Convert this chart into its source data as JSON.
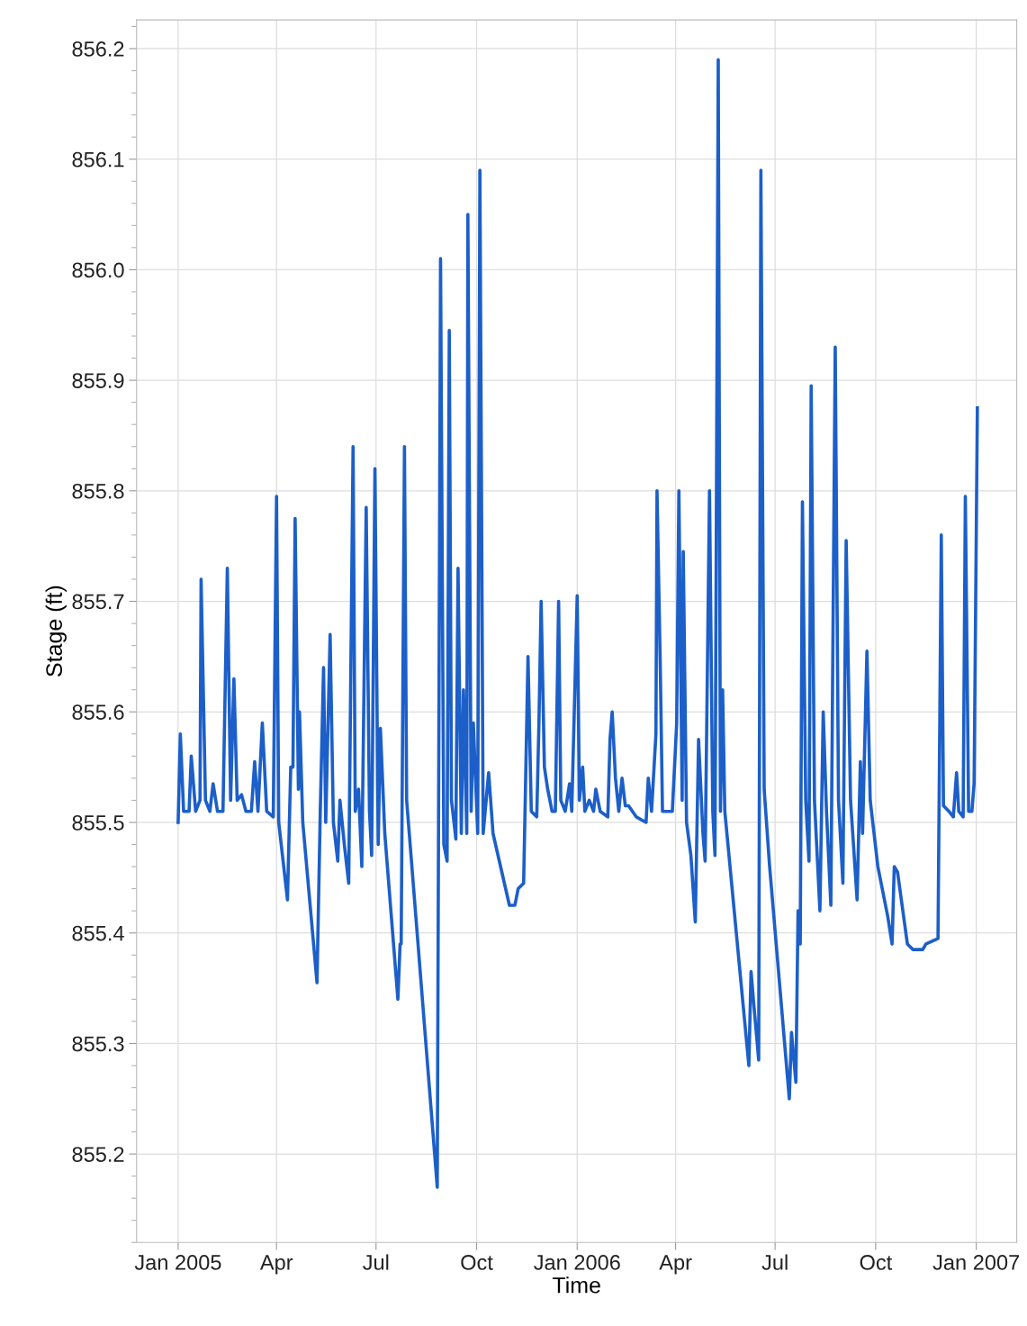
{
  "chart_data": {
    "type": "line",
    "xlabel": "Time",
    "ylabel": "Stage (ft)",
    "xlim": [
      "2004-11-24",
      "2007-02-07"
    ],
    "ylim": [
      855.12,
      856.226
    ],
    "xticks": [
      {
        "value": "2005-01-01",
        "label": "Jan 2005"
      },
      {
        "value": "2005-04-01",
        "label": "Apr"
      },
      {
        "value": "2005-07-01",
        "label": "Jul"
      },
      {
        "value": "2005-10-01",
        "label": "Oct"
      },
      {
        "value": "2006-01-01",
        "label": "Jan 2006"
      },
      {
        "value": "2006-04-01",
        "label": "Apr"
      },
      {
        "value": "2006-07-01",
        "label": "Jul"
      },
      {
        "value": "2006-10-01",
        "label": "Oct"
      },
      {
        "value": "2007-01-01",
        "label": "Jan 2007"
      }
    ],
    "yticks": [
      {
        "value": 855.2,
        "label": "855.2"
      },
      {
        "value": 855.3,
        "label": "855.3"
      },
      {
        "value": 855.4,
        "label": "855.4"
      },
      {
        "value": 855.5,
        "label": "855.5"
      },
      {
        "value": 855.6,
        "label": "855.6"
      },
      {
        "value": 855.7,
        "label": "855.7"
      },
      {
        "value": 855.8,
        "label": "855.8"
      },
      {
        "value": 855.9,
        "label": "855.9"
      },
      {
        "value": 856.0,
        "label": "856.0"
      },
      {
        "value": 856.1,
        "label": "856.1"
      },
      {
        "value": 856.2,
        "label": "856.2"
      }
    ],
    "grid": true,
    "marker": "none",
    "line_style": "solid",
    "x": [
      "2005-01-01",
      "2005-01-03",
      "2005-01-06",
      "2005-01-11",
      "2005-01-13",
      "2005-01-17",
      "2005-01-21",
      "2005-01-22",
      "2005-01-26",
      "2005-01-30",
      "2005-02-02",
      "2005-02-06",
      "2005-02-11",
      "2005-02-15",
      "2005-02-18",
      "2005-02-21",
      "2005-02-24",
      "2005-02-28",
      "2005-03-04",
      "2005-03-09",
      "2005-03-12",
      "2005-03-15",
      "2005-03-19",
      "2005-03-23",
      "2005-03-29",
      "2005-04-01",
      "2005-04-03",
      "2005-04-11",
      "2005-04-14",
      "2005-04-16",
      "2005-04-18",
      "2005-04-21",
      "2005-04-22",
      "2005-04-25",
      "2005-05-08",
      "2005-05-11",
      "2005-05-14",
      "2005-05-16",
      "2005-05-20",
      "2005-05-23",
      "2005-05-27",
      "2005-05-29",
      "2005-06-02",
      "2005-06-06",
      "2005-06-10",
      "2005-06-12",
      "2005-06-15",
      "2005-06-18",
      "2005-06-22",
      "2005-06-25",
      "2005-06-27",
      "2005-06-30",
      "2005-07-03",
      "2005-07-05",
      "2005-07-09",
      "2005-07-21",
      "2005-07-23",
      "2005-07-24",
      "2005-07-27",
      "2005-07-29",
      "2005-08-26",
      "2005-08-29",
      "2005-09-01",
      "2005-09-04",
      "2005-09-06",
      "2005-09-08",
      "2005-09-12",
      "2005-09-14",
      "2005-09-17",
      "2005-09-19",
      "2005-09-22",
      "2005-09-23",
      "2005-09-26",
      "2005-09-28",
      "2005-10-02",
      "2005-10-04",
      "2005-10-07",
      "2005-10-12",
      "2005-10-16",
      "2005-10-31",
      "2005-11-05",
      "2005-11-08",
      "2005-11-13",
      "2005-11-17",
      "2005-11-20",
      "2005-11-25",
      "2005-11-27",
      "2005-11-29",
      "2005-12-02",
      "2005-12-05",
      "2005-12-09",
      "2005-12-12",
      "2005-12-15",
      "2005-12-17",
      "2005-12-21",
      "2005-12-25",
      "2005-12-27",
      "2006-01-01",
      "2006-01-03",
      "2006-01-06",
      "2006-01-08",
      "2006-01-12",
      "2006-01-16",
      "2006-01-18",
      "2006-01-22",
      "2006-01-29",
      "2006-01-31",
      "2006-02-02",
      "2006-02-05",
      "2006-02-08",
      "2006-02-11",
      "2006-02-14",
      "2006-02-17",
      "2006-02-24",
      "2006-03-05",
      "2006-03-07",
      "2006-03-10",
      "2006-03-14",
      "2006-03-15",
      "2006-03-18",
      "2006-03-20",
      "2006-03-25",
      "2006-03-29",
      "2006-04-02",
      "2006-04-04",
      "2006-04-07",
      "2006-04-08",
      "2006-04-11",
      "2006-04-15",
      "2006-04-19",
      "2006-04-22",
      "2006-04-26",
      "2006-04-28",
      "2006-05-02",
      "2006-05-05",
      "2006-05-07",
      "2006-05-10",
      "2006-05-12",
      "2006-05-14",
      "2006-05-16",
      "2006-06-07",
      "2006-06-09",
      "2006-06-12",
      "2006-06-16",
      "2006-06-18",
      "2006-06-21",
      "2006-06-26",
      "2006-07-14",
      "2006-07-16",
      "2006-07-20",
      "2006-07-22",
      "2006-07-24",
      "2006-07-26",
      "2006-07-29",
      "2006-08-01",
      "2006-08-03",
      "2006-08-06",
      "2006-08-11",
      "2006-08-14",
      "2006-08-17",
      "2006-08-21",
      "2006-08-25",
      "2006-08-28",
      "2006-09-01",
      "2006-09-04",
      "2006-09-08",
      "2006-09-14",
      "2006-09-17",
      "2006-09-19",
      "2006-09-23",
      "2006-09-26",
      "2006-10-03",
      "2006-10-12",
      "2006-10-16",
      "2006-10-18",
      "2006-10-21",
      "2006-10-30",
      "2006-11-04",
      "2006-11-13",
      "2006-11-16",
      "2006-11-27",
      "2006-11-30",
      "2006-12-02",
      "2006-12-07",
      "2006-12-11",
      "2006-12-14",
      "2006-12-16",
      "2006-12-20",
      "2006-12-22",
      "2006-12-25",
      "2006-12-28",
      "2006-12-30",
      "2007-01-02"
    ],
    "series": [
      {
        "color": "#1c5fc9",
        "values": [
          855.5,
          855.58,
          855.51,
          855.51,
          855.56,
          855.51,
          855.52,
          855.72,
          855.52,
          855.51,
          855.535,
          855.51,
          855.51,
          855.73,
          855.52,
          855.63,
          855.52,
          855.525,
          855.51,
          855.51,
          855.555,
          855.51,
          855.59,
          855.51,
          855.505,
          855.795,
          855.5,
          855.43,
          855.55,
          855.55,
          855.775,
          855.53,
          855.6,
          855.5,
          855.355,
          855.51,
          855.64,
          855.5,
          855.67,
          855.5,
          855.465,
          855.52,
          855.48,
          855.445,
          855.84,
          855.51,
          855.53,
          855.46,
          855.785,
          855.51,
          855.47,
          855.82,
          855.48,
          855.585,
          855.49,
          855.34,
          855.39,
          855.39,
          855.84,
          855.52,
          855.17,
          856.01,
          855.48,
          855.465,
          855.945,
          855.52,
          855.485,
          855.73,
          855.49,
          855.62,
          855.49,
          856.05,
          855.51,
          855.59,
          855.49,
          856.09,
          855.49,
          855.545,
          855.49,
          855.425,
          855.425,
          855.44,
          855.445,
          855.65,
          855.51,
          855.505,
          855.59,
          855.7,
          855.55,
          855.53,
          855.51,
          855.51,
          855.7,
          855.52,
          855.51,
          855.535,
          855.51,
          855.705,
          855.52,
          855.55,
          855.51,
          855.52,
          855.51,
          855.53,
          855.51,
          855.505,
          855.575,
          855.6,
          855.54,
          855.51,
          855.54,
          855.515,
          855.515,
          855.505,
          855.5,
          855.54,
          855.51,
          855.58,
          855.8,
          855.64,
          855.51,
          855.51,
          855.51,
          855.59,
          855.8,
          855.52,
          855.745,
          855.5,
          855.47,
          855.41,
          855.575,
          855.49,
          855.465,
          855.8,
          855.51,
          855.47,
          856.19,
          855.51,
          855.62,
          855.51,
          855.28,
          855.365,
          855.33,
          855.285,
          856.09,
          855.53,
          855.46,
          855.25,
          855.31,
          855.265,
          855.42,
          855.39,
          855.79,
          855.52,
          855.465,
          855.895,
          855.52,
          855.42,
          855.6,
          855.51,
          855.425,
          855.93,
          855.52,
          855.445,
          855.755,
          855.52,
          855.43,
          855.555,
          855.49,
          855.655,
          855.52,
          855.46,
          855.415,
          855.39,
          855.46,
          855.455,
          855.39,
          855.385,
          855.385,
          855.39,
          855.395,
          855.76,
          855.515,
          855.51,
          855.505,
          855.545,
          855.51,
          855.505,
          855.795,
          855.51,
          855.51,
          855.535,
          855.875
        ]
      }
    ]
  }
}
